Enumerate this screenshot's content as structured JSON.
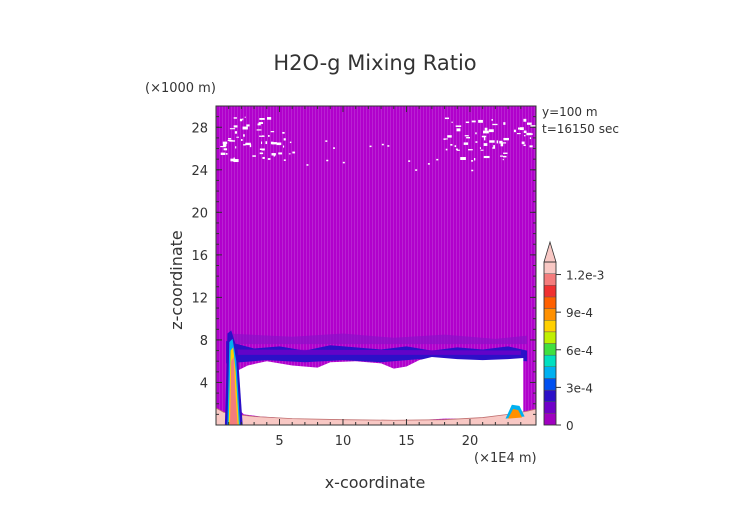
{
  "chart_data": {
    "type": "heatmap",
    "title": "H2O-g Mixing Ratio",
    "xlabel": "x-coordinate",
    "ylabel": "z-coordinate",
    "x_unit": "(×1E4 m)",
    "y_unit": "(×1000 m)",
    "annotations": [
      "y=100 m",
      "t=16150 sec"
    ],
    "xlim": [
      0,
      25.2
    ],
    "ylim": [
      0,
      30
    ],
    "x_ticks": [
      5,
      10,
      15,
      20
    ],
    "x_tick_labels": [
      "5",
      "10",
      "15",
      "20"
    ],
    "y_ticks": [
      4,
      8,
      12,
      16,
      20,
      24,
      28
    ],
    "y_tick_labels": [
      "4",
      "8",
      "12",
      "16",
      "20",
      "24",
      "28"
    ],
    "colorbar": {
      "min": 0,
      "max": 0.0013,
      "tick_values": [
        0,
        0.0003,
        0.0006,
        0.0009,
        0.0012
      ],
      "tick_labels": [
        "0",
        "3e-4",
        "6e-4",
        "9e-4",
        "1.2e-3"
      ],
      "colors": [
        "#a000c0",
        "#7000c8",
        "#2c10c8",
        "#0050f0",
        "#00b0f0",
        "#00e0c0",
        "#40e040",
        "#c0f000",
        "#ffd000",
        "#ff9000",
        "#ff6000",
        "#f03030",
        "#f47c7c",
        "#f8c8c4"
      ],
      "extend": "max"
    },
    "field": {
      "background": "#b100cc",
      "layers": [
        {
          "name": "moist band",
          "x_range": [
            0.8,
            24.5
          ],
          "z_range": [
            6.2,
            7.6
          ],
          "value": 0.00015
        },
        {
          "name": "dry region",
          "x_range": [
            1.5,
            24.2
          ],
          "z_range": [
            0.4,
            6.3
          ],
          "value": null
        },
        {
          "name": "surface layer",
          "x_range": [
            0,
            25.2
          ],
          "z_range": [
            0,
            0.5
          ],
          "value": 0.0012
        },
        {
          "name": "left plume",
          "x_range": [
            0.6,
            2.0
          ],
          "z_range": [
            0,
            8.5
          ],
          "value": 0.001
        },
        {
          "name": "upper dry patches",
          "x_range": [
            0,
            25.2
          ],
          "z_range": [
            25,
            29
          ],
          "value": null
        }
      ]
    }
  }
}
